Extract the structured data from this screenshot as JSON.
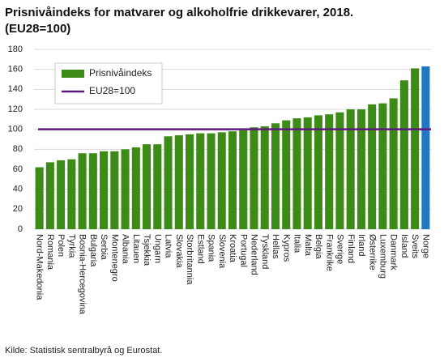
{
  "chart_data": {
    "type": "bar",
    "title": "Prisnivåindeks for matvarer og alkoholfrie drikkevarer, 2018.",
    "subtitle": "(EU28=100)",
    "source": "Kilde: Statistisk sentralbyrå og Eurostat.",
    "categories": [
      "Nord-Makedonia",
      "Romania",
      "Polen",
      "Tyrkia",
      "Bosnia-Hercegovina",
      "Bulgaria",
      "Serbia",
      "Montenegro",
      "Albania",
      "Litauen",
      "Tsjekkia",
      "Ungarn",
      "Latvia",
      "Slovakia",
      "Storbritannia",
      "Estland",
      "Spania",
      "Slovenia",
      "Kroatia",
      "Portugal",
      "Nederland",
      "Tyskland",
      "Hellas",
      "Kypros",
      "Italia",
      "Malta",
      "Belgia",
      "Frankrike",
      "Sverige",
      "Finland",
      "Irland",
      "Østerrike",
      "Luxemburg",
      "Danmark",
      "Island",
      "Sveits",
      "Norge"
    ],
    "series": [
      {
        "name": "Prisnivåindeks",
        "color": "#3d8b17",
        "highlight_category": "Norge",
        "highlight_color": "#1f78c1",
        "values": [
          62,
          67,
          69,
          70,
          76,
          76,
          78,
          78,
          80,
          82,
          85,
          85,
          93,
          94,
          95,
          96,
          96,
          97,
          98,
          99,
          102,
          103,
          106,
          109,
          111,
          112,
          114,
          115,
          117,
          120,
          120,
          125,
          126,
          131,
          149,
          161,
          163
        ]
      }
    ],
    "reference_line": {
      "name": "EU28=100",
      "color": "#5e1a7e",
      "value": 100
    },
    "ylim": [
      0,
      180
    ],
    "yticks": [
      0,
      20,
      40,
      60,
      80,
      100,
      120,
      140,
      160,
      180
    ],
    "grid": true,
    "legend": "upper left"
  }
}
